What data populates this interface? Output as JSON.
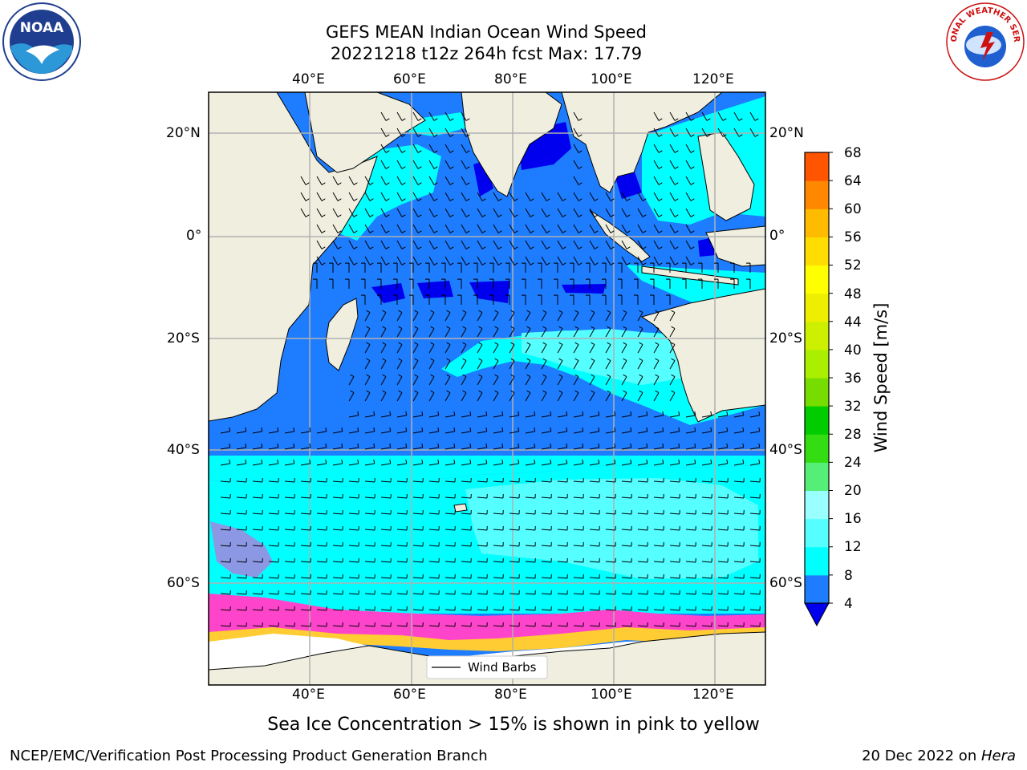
{
  "header": {
    "title_line1": "GEFS MEAN Indian Ocean Wind Speed",
    "title_line2": "20221218 t12z 264h fcst   Max: 17.79"
  },
  "logos": {
    "left": "NOAA",
    "right": "NATIONAL WEATHER SERVICE"
  },
  "map": {
    "lon_ticks_top": [
      "40°E",
      "60°E",
      "80°E",
      "100°E",
      "120°E"
    ],
    "lon_ticks_bottom": [
      "40°E",
      "60°E",
      "80°E",
      "100°E",
      "120°E"
    ],
    "lat_ticks_left": [
      "20°N",
      "0°",
      "20°S",
      "40°S",
      "60°S"
    ],
    "lat_ticks_right": [
      "20°N",
      "0°",
      "20°S",
      "40°S",
      "60°S"
    ],
    "legend_label": "Wind Barbs",
    "colors": {
      "land": "#efeedf",
      "ice_free_white": "#ffffff",
      "ws_4_8": "#1e7cff",
      "ws_8_12": "#00ffff",
      "ws_12_16": "#55ffff",
      "ws_16_20": "#99ffff",
      "ws_below_4": "#0000ee",
      "sea_ice_pink": "#ff44cc",
      "sea_ice_yellow": "#ffcc33",
      "grid": "#b0b0b0"
    }
  },
  "colorbar": {
    "label": "Wind Speed [m/s]",
    "ticks": [
      "68",
      "64",
      "60",
      "56",
      "52",
      "48",
      "44",
      "40",
      "36",
      "32",
      "28",
      "24",
      "20",
      "16",
      "12",
      "8",
      "4"
    ],
    "colors_bottom_to_top": [
      "#1e7cff",
      "#00ffff",
      "#55ffff",
      "#99ffff",
      "#55ee77",
      "#33dd11",
      "#00cc00",
      "#77dd00",
      "#aaee00",
      "#ccf000",
      "#eeee00",
      "#ffff00",
      "#ffdd00",
      "#ffbb00",
      "#ff8800",
      "#ff5500",
      "#ff2200",
      "#ff0000"
    ],
    "extend_below_color": "#0000ee"
  },
  "caption": "Sea Ice Concentration > 15% is shown in pink to yellow",
  "footer": {
    "left": "NCEP/EMC/Verification Post Processing Product Generation Branch",
    "right_prefix": "20 Dec 2022 on ",
    "right_italic": "Hera"
  }
}
